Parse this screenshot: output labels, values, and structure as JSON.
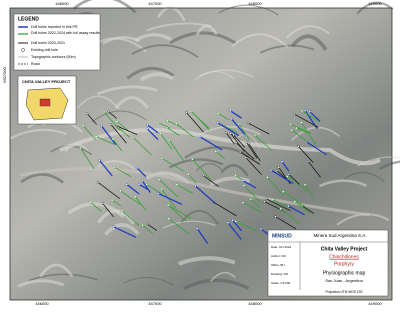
{
  "map": {
    "grid_top": [
      "446000",
      "447000",
      "448000",
      "449000"
    ],
    "grid_bottom": [
      "446000",
      "447000",
      "448000",
      "449000"
    ],
    "grid_left": [
      "6627000"
    ],
    "legend": {
      "title": "LEGEND",
      "items": [
        "Drill holes reported in this PR",
        "Drill holes 2022-2024 with full assay results",
        "Drill holes 2020-2021",
        "Existing drill hole",
        "Topographic contours (50m)",
        "Road"
      ]
    },
    "inset": {
      "title": "CHITA VALLEY PROJECT"
    },
    "title_block": {
      "logo": "MINSUD",
      "company": "Minera Sud Argentina S.A.",
      "project": "Chita Valley Project",
      "target": "Chinchillones",
      "target2": "Porphyry",
      "map_type": "Physiographic map",
      "location": "San Juan - Argentina",
      "meta": [
        "Date: Oct 2024",
        "Author: DO",
        "Office: BU",
        "Drawing: DN",
        "Scale: 1:5,000"
      ],
      "projection": "Projection UTM WGS 19S"
    }
  }
}
